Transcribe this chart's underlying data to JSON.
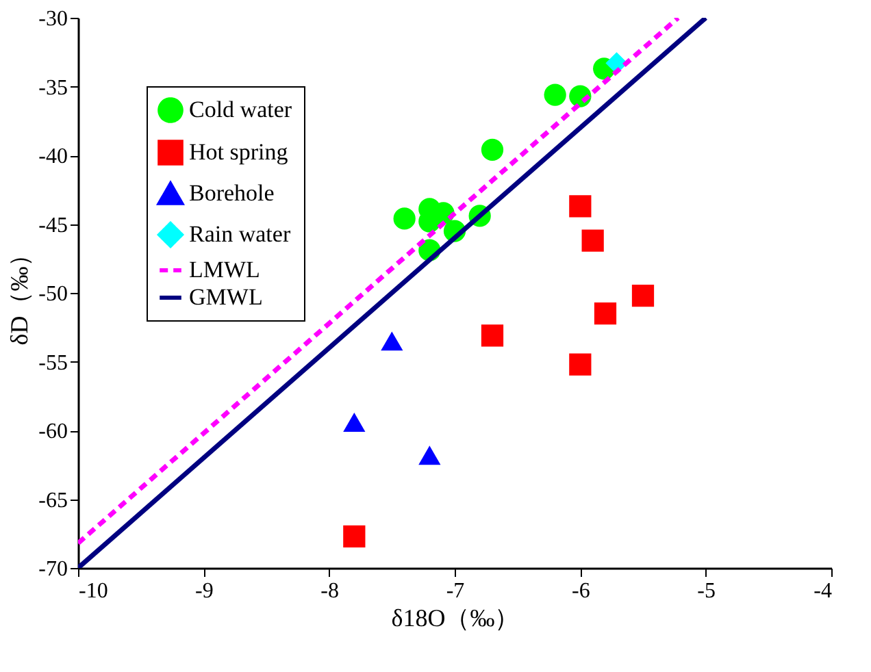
{
  "chart_data": {
    "type": "scatter",
    "xlabel": "δ18O（‰）",
    "ylabel": "δD（‰）",
    "xlim": [
      -10,
      -4
    ],
    "xticks": [
      -10,
      -9,
      -8,
      -7,
      -6,
      -5,
      -4
    ],
    "ylim": [
      -70,
      -30
    ],
    "yticks": [
      -70,
      -65,
      -60,
      -55,
      -50,
      -45,
      -40,
      -35,
      -30
    ],
    "grid": false,
    "legend": "top left",
    "series": [
      {
        "name": "Cold water",
        "marker": "circle",
        "color": "#00ff00",
        "x": [
          -5.81,
          -6.2,
          -6.0,
          -6.7,
          -7.4,
          -7.2,
          -7.09,
          -7.2,
          -7.0,
          -6.8,
          -7.2
        ],
        "values": [
          -33.7,
          -35.6,
          -35.7,
          -39.6,
          -44.6,
          -43.9,
          -44.2,
          -44.8,
          -45.5,
          -44.4,
          -46.9
        ]
      },
      {
        "name": "Hot spring",
        "marker": "square",
        "color": "#ff0000",
        "x": [
          -6.0,
          -5.9,
          -5.5,
          -5.8,
          -6.7,
          -6.0,
          -7.8
        ],
        "values": [
          -43.7,
          -46.2,
          -50.2,
          -51.5,
          -53.1,
          -55.2,
          -67.7
        ]
      },
      {
        "name": "Borehole",
        "marker": "triangle",
        "color": "#0000ff",
        "x": [
          -7.5,
          -7.8,
          -7.2
        ],
        "values": [
          -53.5,
          -59.4,
          -61.8
        ]
      },
      {
        "name": "Rain water",
        "marker": "diamond",
        "color": "#00ffff",
        "x": [
          -5.71
        ],
        "values": [
          -33.3
        ]
      },
      {
        "name": "LMWL",
        "type": "line",
        "line_style": "dashed",
        "color": "#ff00ff",
        "x": [
          -10,
          -5.22
        ],
        "values": [
          -68.2,
          -30
        ]
      },
      {
        "name": "GMWL",
        "type": "line",
        "line_style": "solid",
        "color": "#000080",
        "x": [
          -10,
          -5
        ],
        "values": [
          -70,
          -30
        ]
      }
    ]
  }
}
